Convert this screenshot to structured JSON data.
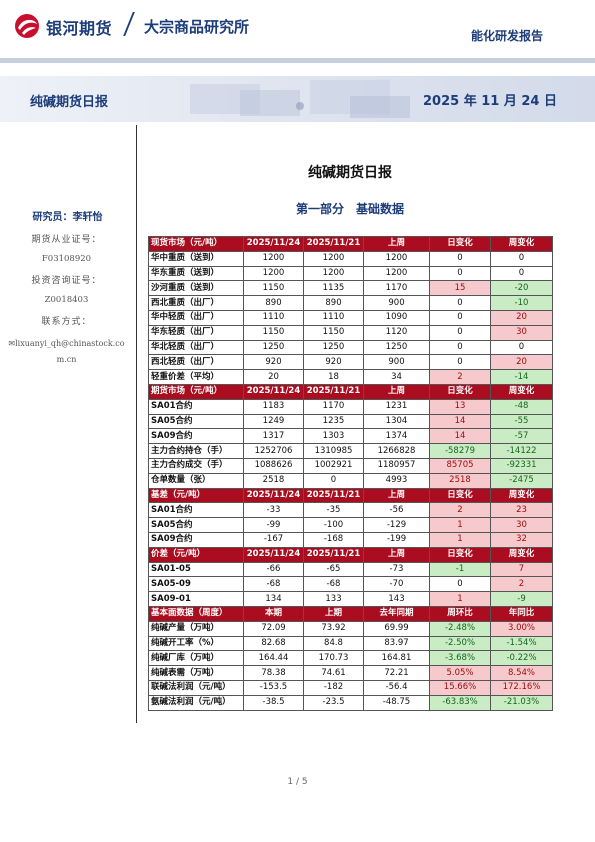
{
  "header": {
    "brand": "银河期货",
    "institute": "大宗商品研究所",
    "report_type": "能化研发报告"
  },
  "banner": {
    "title": "纯碱期货日报",
    "date": "2025 年 11 月 24 日"
  },
  "sidebar": {
    "analyst": "研究员：李轩怡",
    "license_label": "期货从业证号：",
    "license_value": "F03108920",
    "advisor_label": "投资咨询证号：",
    "advisor_value": "Z0018403",
    "contact_label": "联系方式：",
    "email": "lixuanyi_qh@chinastock.com.cn"
  },
  "document": {
    "title": "纯碱期货日报",
    "section": "第一部分　基础数据"
  },
  "table": {
    "sections": [
      {
        "header": [
          "现货市场（元/吨）",
          "2025/11/24",
          "2025/11/21",
          "上周",
          "日变化",
          "周变化"
        ],
        "rows": [
          {
            "name": "华中重质（送到）",
            "v1": "1200",
            "v2": "1200",
            "v3": "1200",
            "d": "0",
            "w": "0"
          },
          {
            "name": "华东重质（送到）",
            "v1": "1200",
            "v2": "1200",
            "v3": "1200",
            "d": "0",
            "w": "0"
          },
          {
            "name": "沙河重质（送到）",
            "v1": "1150",
            "v2": "1135",
            "v3": "1170",
            "d": "15",
            "w": "-20"
          },
          {
            "name": "西北重质（出厂）",
            "v1": "890",
            "v2": "890",
            "v3": "900",
            "d": "0",
            "w": "-10"
          },
          {
            "name": "华中轻质（出厂）",
            "v1": "1110",
            "v2": "1110",
            "v3": "1090",
            "d": "0",
            "w": "20"
          },
          {
            "name": "华东轻质（出厂）",
            "v1": "1150",
            "v2": "1150",
            "v3": "1120",
            "d": "0",
            "w": "30"
          },
          {
            "name": "华北轻质（出厂）",
            "v1": "1250",
            "v2": "1250",
            "v3": "1250",
            "d": "0",
            "w": "0"
          },
          {
            "name": "西北轻质（出厂）",
            "v1": "920",
            "v2": "920",
            "v3": "900",
            "d": "0",
            "w": "20"
          },
          {
            "name": "轻重价差（平均）",
            "v1": "20",
            "v2": "18",
            "v3": "34",
            "d": "2",
            "w": "-14"
          }
        ]
      },
      {
        "header": [
          "期货市场（元/吨）",
          "2025/11/24",
          "2025/11/21",
          "上周",
          "日变化",
          "周变化"
        ],
        "rows": [
          {
            "name": "SA01合约",
            "v1": "1183",
            "v2": "1170",
            "v3": "1231",
            "d": "13",
            "w": "-48"
          },
          {
            "name": "SA05合约",
            "v1": "1249",
            "v2": "1235",
            "v3": "1304",
            "d": "14",
            "w": "-55"
          },
          {
            "name": "SA09合约",
            "v1": "1317",
            "v2": "1303",
            "v3": "1374",
            "d": "14",
            "w": "-57"
          },
          {
            "name": "主力合约持仓（手）",
            "v1": "1252706",
            "v2": "1310985",
            "v3": "1266828",
            "d": "-58279",
            "w": "-14122"
          },
          {
            "name": "主力合约成交（手）",
            "v1": "1088626",
            "v2": "1002921",
            "v3": "1180957",
            "d": "85705",
            "w": "-92331"
          },
          {
            "name": "仓单数量（张）",
            "v1": "2518",
            "v2": "0",
            "v3": "4993",
            "d": "2518",
            "w": "-2475"
          }
        ]
      },
      {
        "header": [
          "基差（元/吨）",
          "2025/11/24",
          "2025/11/21",
          "上周",
          "日变化",
          "周变化"
        ],
        "rows": [
          {
            "name": "SA01合约",
            "v1": "-33",
            "v2": "-35",
            "v3": "-56",
            "d": "2",
            "w": "23"
          },
          {
            "name": "SA05合约",
            "v1": "-99",
            "v2": "-100",
            "v3": "-129",
            "d": "1",
            "w": "30"
          },
          {
            "name": "SA09合约",
            "v1": "-167",
            "v2": "-168",
            "v3": "-199",
            "d": "1",
            "w": "32"
          }
        ]
      },
      {
        "header": [
          "价差（元/吨）",
          "2025/11/24",
          "2025/11/21",
          "上周",
          "日变化",
          "周变化"
        ],
        "rows": [
          {
            "name": "SA01-05",
            "v1": "-66",
            "v2": "-65",
            "v3": "-73",
            "d": "-1",
            "w": "7"
          },
          {
            "name": "SA05-09",
            "v1": "-68",
            "v2": "-68",
            "v3": "-70",
            "d": "0",
            "w": "2"
          },
          {
            "name": "SA09-01",
            "v1": "134",
            "v2": "133",
            "v3": "143",
            "d": "1",
            "w": "-9"
          }
        ]
      },
      {
        "header": [
          "基本面数据（周度）",
          "本期",
          "上期",
          "去年同期",
          "周环比",
          "年同比"
        ],
        "rows": [
          {
            "name": "纯碱产量（万吨）",
            "v1": "72.09",
            "v2": "73.92",
            "v3": "69.99",
            "d": "-2.48%",
            "w": "3.00%"
          },
          {
            "name": "纯碱开工率（%）",
            "v1": "82.68",
            "v2": "84.8",
            "v3": "83.97",
            "d": "-2.50%",
            "w": "-1.54%"
          },
          {
            "name": "纯碱厂库（万吨）",
            "v1": "164.44",
            "v2": "170.73",
            "v3": "164.81",
            "d": "-3.68%",
            "w": "-0.22%"
          },
          {
            "name": "纯碱表需（万吨）",
            "v1": "78.38",
            "v2": "74.61",
            "v3": "72.21",
            "d": "5.05%",
            "w": "8.54%"
          },
          {
            "name": "联碱法利润（元/吨）",
            "v1": "-153.5",
            "v2": "-182",
            "v3": "-56.4",
            "d": "15.66%",
            "w": "172.16%"
          },
          {
            "name": "氨碱法利润（元/吨）",
            "v1": "-38.5",
            "v2": "-23.5",
            "v3": "-48.75",
            "d": "-63.83%",
            "w": "-21.03%"
          }
        ]
      }
    ]
  },
  "colors": {
    "header_bg": "#a90d1f",
    "positive_bg": "#f6c9cd",
    "negative_bg": "#c9ecc4",
    "brand": "#1d3c7a"
  },
  "footer": {
    "page": "1 / 5"
  }
}
